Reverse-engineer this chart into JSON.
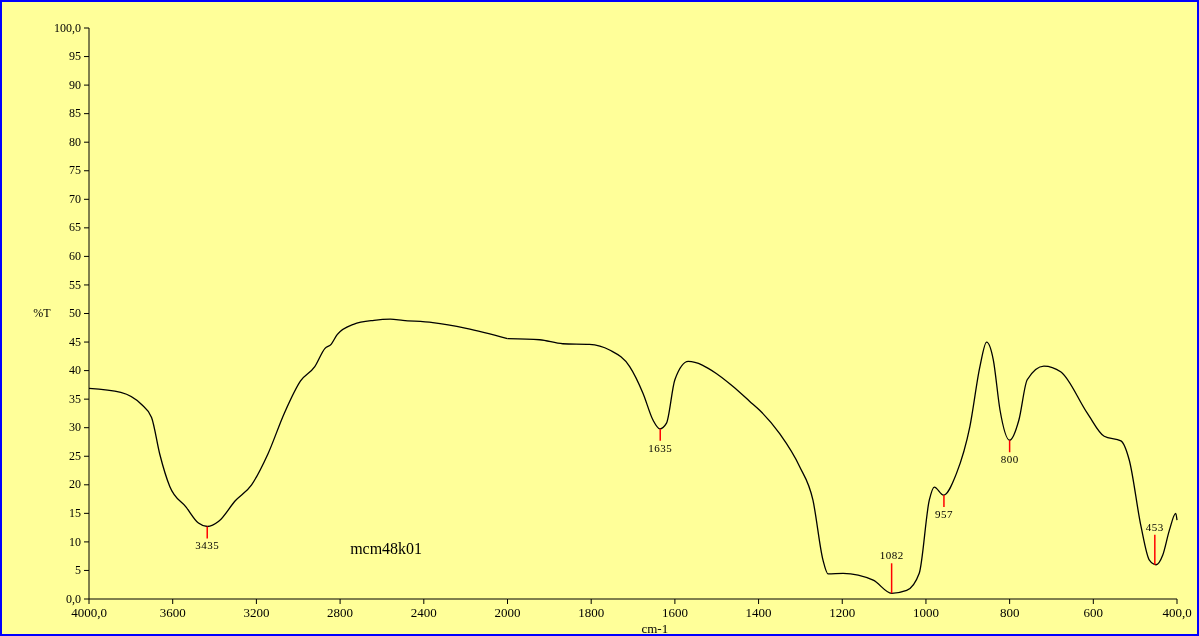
{
  "chart_data": [
    {
      "type": "line",
      "ylabel": "%T",
      "xlim": [
        4000,
        2000
      ],
      "ylim": [
        0,
        100
      ],
      "tick_labels": "xy",
      "xticks": [
        {
          "value": 4000,
          "label": "4000,0"
        },
        3600,
        3200,
        2800,
        2400,
        2000
      ],
      "yticks": [
        {
          "value": 0,
          "label": "0,0"
        },
        5,
        10,
        15,
        20,
        25,
        30,
        35,
        40,
        45,
        50,
        55,
        60,
        65,
        70,
        75,
        80,
        85,
        90,
        95,
        {
          "value": 100,
          "label": "100,0"
        }
      ],
      "marker": "none",
      "line_style": "solid",
      "series": [
        {
          "color": "#000000",
          "x": [
            4000,
            3848,
            3750,
            3701,
            3662,
            3614,
            3536,
            3477,
            3434,
            3380,
            3301,
            3223,
            3145,
            3067,
            2989,
            2921,
            2872,
            2843,
            2814,
            2736,
            2638,
            2560,
            2500,
            2357,
            2197,
            2000
          ],
          "values": [
            36.9,
            36.2,
            34.1,
            31.8,
            25.4,
            19.7,
            16.1,
            13.3,
            12.7,
            13.6,
            17.2,
            20.0,
            25.4,
            32.5,
            38.2,
            40.7,
            43.9,
            44.6,
            46.3,
            48.1,
            48.8,
            49.0,
            48.8,
            48.4,
            47.4,
            45.6
          ]
        }
      ],
      "annotations": [
        {
          "text": "3435",
          "x": 3435,
          "y": 12.7
        },
        "mcm48k01"
      ]
    },
    {
      "type": "line",
      "xlabel": "cm-1",
      "xlim": [
        2000,
        400
      ],
      "ylim": [
        0,
        100
      ],
      "tick_labels": "x",
      "xticks": [
        1800,
        1600,
        1400,
        1200,
        1000,
        800,
        600,
        {
          "value": 400,
          "label": "400,0"
        }
      ],
      "marker": "none",
      "line_style": "solid",
      "series": [
        {
          "color": "#000000",
          "x": [
            2000,
            1923,
            1868,
            1804,
            1756,
            1708,
            1676,
            1652,
            1636,
            1620,
            1600,
            1568,
            1501,
            1461,
            1421,
            1398,
            1350,
            1302,
            1270,
            1246,
            1234,
            1198,
            1126,
            1082,
            1046,
            1016,
            992,
            980,
            958,
            927,
            895,
            871,
            855,
            839,
            823,
            800,
            778,
            758,
            718,
            678,
            614,
            574,
            534,
            514,
            486,
            466,
            450,
            434,
            418,
            403,
            400
          ],
          "values": [
            45.6,
            45.4,
            44.7,
            44.6,
            43.6,
            40.7,
            36.0,
            31.3,
            29.8,
            30.8,
            38.4,
            41.6,
            39.5,
            37.2,
            34.6,
            33.1,
            29.0,
            23.2,
            17.3,
            6.8,
            4.4,
            4.5,
            3.3,
            1.0,
            1.5,
            4.5,
            17.3,
            19.6,
            18.2,
            22.0,
            30.2,
            40.7,
            45.0,
            41.9,
            33.1,
            27.8,
            31.3,
            38.4,
            40.8,
            39.8,
            32.5,
            28.5,
            27.7,
            24.3,
            12.7,
            6.8,
            6.0,
            7.7,
            12.1,
            15.0,
            13.8
          ]
        }
      ],
      "annotations": [
        {
          "text": "1635",
          "x": 1635,
          "y": 29.8
        },
        {
          "text": "1082",
          "x": 1082,
          "y": 1.0
        },
        {
          "text": "957",
          "x": 957,
          "y": 18.2
        },
        {
          "text": "800",
          "x": 800,
          "y": 27.8
        },
        {
          "text": "453",
          "x": 453,
          "y": 6.0
        }
      ]
    }
  ]
}
